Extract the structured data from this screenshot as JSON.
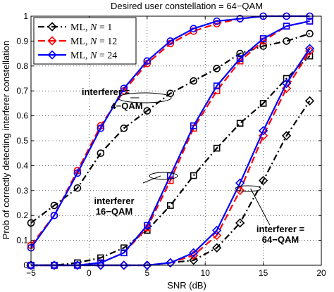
{
  "chart_data": {
    "type": "line",
    "title": "Desired user constellation = 64−QAM",
    "xlabel": "SNR (dB)",
    "ylabel": "Prob of correctly detecting interferer constellation",
    "xlim": [
      -5,
      20
    ],
    "ylim": [
      0,
      1
    ],
    "xticks": [
      -5,
      0,
      5,
      10,
      15,
      20
    ],
    "yticks": [
      0,
      0.1,
      0.2,
      0.3,
      0.4,
      0.5,
      0.6,
      0.7,
      0.8,
      0.9,
      1
    ],
    "grid": true,
    "legend_position": "top-left",
    "series": [
      {
        "name": "ML, N = 1",
        "legend": {
          "base": "ML, ",
          "var": "N",
          "rest": " = 1"
        },
        "color": "#000000",
        "dash": "dashdot",
        "marker": "diamond",
        "curves": [
          {
            "group": "4-QAM",
            "marker": "circle",
            "points": [
              [
                -5,
                0.17
              ],
              [
                -3,
                0.24
              ],
              [
                -1,
                0.31
              ],
              [
                1,
                0.45
              ],
              [
                3,
                0.55
              ],
              [
                5,
                0.62
              ],
              [
                7,
                0.69
              ],
              [
                9,
                0.74
              ],
              [
                11,
                0.79
              ],
              [
                13,
                0.85
              ],
              [
                15,
                0.88
              ],
              [
                17,
                0.9
              ],
              [
                19,
                0.93
              ]
            ]
          },
          {
            "group": "16-QAM",
            "marker": "square",
            "points": [
              [
                -5,
                0.0
              ],
              [
                -3,
                0.0
              ],
              [
                -1,
                0.01
              ],
              [
                1,
                0.03
              ],
              [
                3,
                0.07
              ],
              [
                5,
                0.14
              ],
              [
                7,
                0.24
              ],
              [
                9,
                0.36
              ],
              [
                11,
                0.47
              ],
              [
                13,
                0.57
              ],
              [
                15,
                0.65
              ],
              [
                17,
                0.75
              ],
              [
                19,
                0.84
              ]
            ]
          },
          {
            "group": "64-QAM",
            "marker": "diamond",
            "points": [
              [
                -5,
                0.0
              ],
              [
                -3,
                0.0
              ],
              [
                -1,
                0.0
              ],
              [
                1,
                0.0
              ],
              [
                3,
                0.0
              ],
              [
                5,
                0.0
              ],
              [
                7,
                0.01
              ],
              [
                9,
                0.02
              ],
              [
                11,
                0.07
              ],
              [
                13,
                0.17
              ],
              [
                15,
                0.34
              ],
              [
                17,
                0.52
              ],
              [
                19,
                0.66
              ]
            ]
          }
        ]
      },
      {
        "name": "ML, N = 12",
        "legend": {
          "base": "ML, ",
          "var": "N",
          "rest": " = 12"
        },
        "color": "#ff0000",
        "dash": "dashed",
        "marker": "diamond",
        "curves": [
          {
            "group": "4-QAM",
            "marker": "circle",
            "points": [
              [
                -5,
                0.08
              ],
              [
                -3,
                0.2
              ],
              [
                -1,
                0.38
              ],
              [
                1,
                0.56
              ],
              [
                3,
                0.7
              ],
              [
                5,
                0.81
              ],
              [
                7,
                0.89
              ],
              [
                9,
                0.94
              ],
              [
                11,
                0.97
              ],
              [
                13,
                0.99
              ],
              [
                15,
                1.0
              ],
              [
                17,
                1.0
              ],
              [
                19,
                1.0
              ]
            ]
          },
          {
            "group": "16-QAM",
            "marker": "square",
            "points": [
              [
                -5,
                0.0
              ],
              [
                -3,
                0.0
              ],
              [
                -1,
                0.0
              ],
              [
                1,
                0.01
              ],
              [
                3,
                0.05
              ],
              [
                5,
                0.15
              ],
              [
                7,
                0.34
              ],
              [
                9,
                0.55
              ],
              [
                11,
                0.7
              ],
              [
                13,
                0.82
              ],
              [
                15,
                0.9
              ],
              [
                17,
                0.96
              ],
              [
                19,
                0.98
              ]
            ]
          },
          {
            "group": "64-QAM",
            "marker": "diamond",
            "points": [
              [
                -5,
                0.0
              ],
              [
                -3,
                0.0
              ],
              [
                -1,
                0.0
              ],
              [
                1,
                0.0
              ],
              [
                3,
                0.0
              ],
              [
                5,
                0.0
              ],
              [
                7,
                0.01
              ],
              [
                9,
                0.04
              ],
              [
                11,
                0.12
              ],
              [
                13,
                0.3
              ],
              [
                15,
                0.52
              ],
              [
                17,
                0.71
              ],
              [
                19,
                0.86
              ]
            ]
          }
        ]
      },
      {
        "name": "ML, N = 24",
        "legend": {
          "base": "ML, ",
          "var": "N",
          "rest": " = 24"
        },
        "color": "#0000ff",
        "dash": "solid",
        "marker": "diamond",
        "curves": [
          {
            "group": "4-QAM",
            "marker": "circle",
            "points": [
              [
                -5,
                0.07
              ],
              [
                -3,
                0.2
              ],
              [
                -1,
                0.37
              ],
              [
                1,
                0.55
              ],
              [
                3,
                0.71
              ],
              [
                5,
                0.82
              ],
              [
                7,
                0.9
              ],
              [
                9,
                0.95
              ],
              [
                11,
                0.98
              ],
              [
                13,
                0.99
              ],
              [
                15,
                1.0
              ],
              [
                17,
                1.0
              ],
              [
                19,
                1.0
              ]
            ]
          },
          {
            "group": "16-QAM",
            "marker": "square",
            "points": [
              [
                -5,
                0.0
              ],
              [
                -3,
                0.0
              ],
              [
                -1,
                0.0
              ],
              [
                1,
                0.01
              ],
              [
                3,
                0.05
              ],
              [
                5,
                0.16
              ],
              [
                7,
                0.36
              ],
              [
                9,
                0.56
              ],
              [
                11,
                0.72
              ],
              [
                13,
                0.83
              ],
              [
                15,
                0.91
              ],
              [
                17,
                0.96
              ],
              [
                19,
                0.98
              ]
            ]
          },
          {
            "group": "64-QAM",
            "marker": "diamond",
            "points": [
              [
                -5,
                0.0
              ],
              [
                -3,
                0.0
              ],
              [
                -1,
                0.0
              ],
              [
                1,
                0.0
              ],
              [
                3,
                0.0
              ],
              [
                5,
                0.0
              ],
              [
                7,
                0.01
              ],
              [
                9,
                0.05
              ],
              [
                11,
                0.14
              ],
              [
                13,
                0.33
              ],
              [
                15,
                0.54
              ],
              [
                17,
                0.73
              ],
              [
                19,
                0.87
              ]
            ]
          }
        ]
      }
    ],
    "annotations": [
      {
        "lines": [
          "interferer =",
          "4−QAM"
        ],
        "target": [
          5.2,
          0.67
        ]
      },
      {
        "lines": [
          "interferer",
          "16−QAM"
        ],
        "target": [
          7.0,
          0.35
        ]
      },
      {
        "lines": [
          "interferer =",
          "64−QAM"
        ],
        "target": [
          15.5,
          0.31
        ]
      }
    ]
  }
}
